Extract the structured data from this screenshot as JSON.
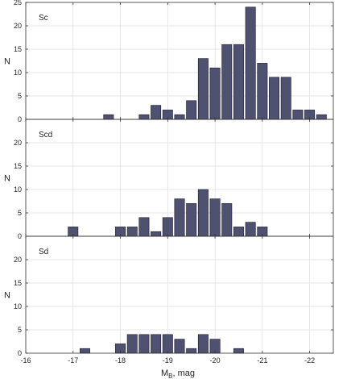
{
  "chart_data": [
    {
      "type": "bar",
      "label": "Sc",
      "ylabel": "N",
      "xlim": [
        -16,
        -22.5
      ],
      "ylim": [
        0,
        25
      ],
      "yticks": [
        0,
        5,
        10,
        15,
        20,
        25
      ],
      "x": [
        -17.25,
        -17.5,
        -17.75,
        -18.0,
        -18.25,
        -18.5,
        -18.75,
        -19.0,
        -19.25,
        -19.5,
        -19.75,
        -20.0,
        -20.25,
        -20.5,
        -20.75,
        -21.0,
        -21.25,
        -21.5,
        -21.75,
        -22.0,
        -22.25
      ],
      "values": [
        0,
        0,
        1,
        0,
        0,
        1,
        3,
        2,
        1,
        4,
        13,
        11,
        16,
        16,
        24,
        12,
        9,
        9,
        2,
        2,
        1
      ],
      "bar_color": "#4f5170"
    },
    {
      "type": "bar",
      "label": "Scd",
      "ylabel": "N",
      "xlim": [
        -16,
        -22.5
      ],
      "ylim": [
        0,
        25
      ],
      "yticks": [
        0,
        5,
        10,
        15,
        20
      ],
      "x": [
        -16.75,
        -17.0,
        -17.25,
        -17.5,
        -17.75,
        -18.0,
        -18.25,
        -18.5,
        -18.75,
        -19.0,
        -19.25,
        -19.5,
        -19.75,
        -20.0,
        -20.25,
        -20.5,
        -20.75
      ],
      "values": [
        0,
        2,
        0,
        0,
        0,
        2,
        2,
        4,
        1,
        4,
        8,
        7,
        10,
        8,
        7,
        2,
        3
      ],
      "extra": [
        {
          "x": -21.0,
          "value": 2
        }
      ],
      "bar_color": "#4f5170"
    },
    {
      "type": "bar",
      "label": "Sd",
      "ylabel": "N",
      "xlabel_main": "M",
      "xlabel_sub": "B",
      "xlabel_rest": ", mag",
      "xlim": [
        -16,
        -22.5
      ],
      "ylim": [
        0,
        25
      ],
      "yticks": [
        0,
        5,
        10,
        15,
        20
      ],
      "x": [
        -16.75,
        -17.0,
        -17.25,
        -17.5,
        -17.75,
        -18.0,
        -18.25,
        -18.5,
        -18.75,
        -19.0,
        -19.25,
        -19.5,
        -19.75,
        -20.0,
        -20.25,
        -20.5
      ],
      "values": [
        0,
        0,
        1,
        0,
        0,
        2,
        4,
        4,
        4,
        4,
        3,
        1,
        4,
        3,
        0,
        1
      ],
      "bar_color": "#4f5170",
      "xticks": [
        -16,
        -17,
        -18,
        -19,
        -20,
        -21,
        -22
      ]
    }
  ]
}
